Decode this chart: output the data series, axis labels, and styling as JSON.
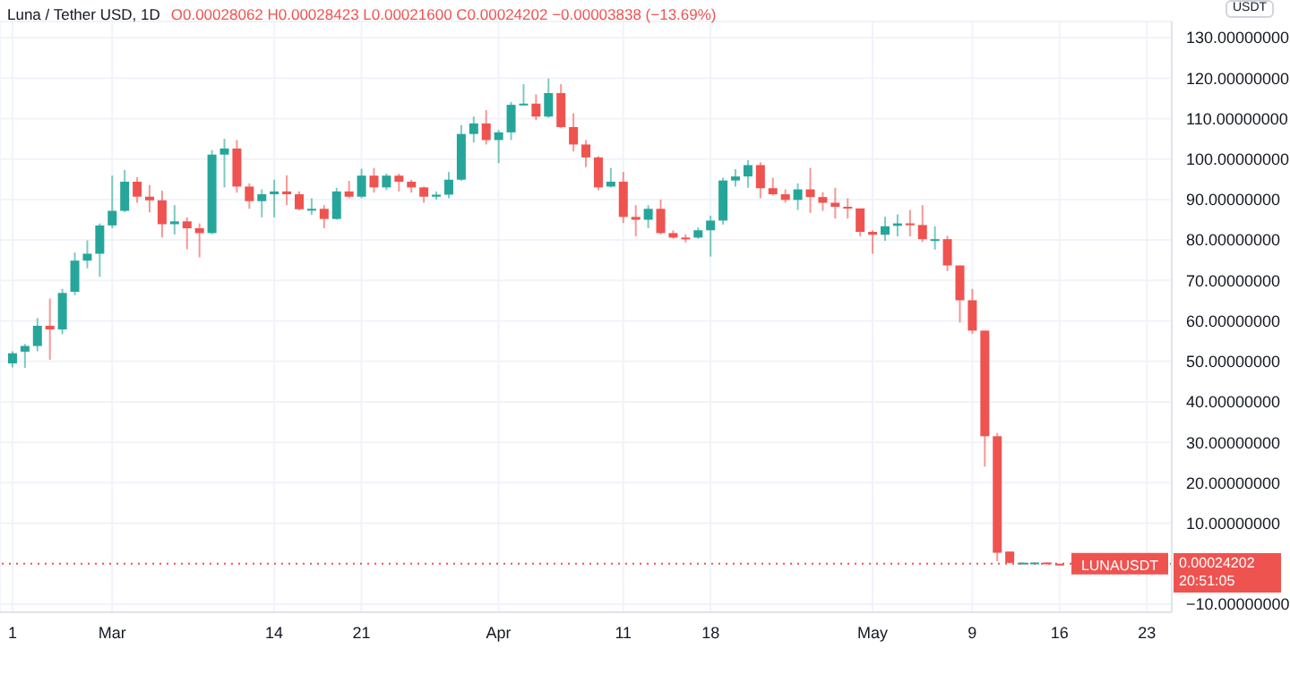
{
  "chart_data": {
    "type": "candlestick",
    "title": "Luna / Tether USD, 1D",
    "subtitle": "O0.00028062 H0.00028423 L0.00021600 C0.00024202 −0.00003838 (−13.69%)",
    "ylabel": "USDT",
    "x": [
      "--02-21",
      "--02-22",
      "--02-23",
      "--02-24",
      "--02-25",
      "--02-26",
      "--02-27",
      "--02-28",
      "--03-01",
      "--03-02",
      "--03-03",
      "--03-04",
      "--03-05",
      "--03-06",
      "--03-07",
      "--03-08",
      "--03-09",
      "--03-10",
      "--03-11",
      "--03-12",
      "--03-13",
      "--03-14",
      "--03-15",
      "--03-16",
      "--03-17",
      "--03-18",
      "--03-19",
      "--03-20",
      "--03-21",
      "--03-22",
      "--03-23",
      "--03-24",
      "--03-25",
      "--03-26",
      "--03-27",
      "--03-28",
      "--03-29",
      "--03-30",
      "--03-31",
      "--04-01",
      "--04-02",
      "--04-03",
      "--04-04",
      "--04-05",
      "--04-06",
      "--04-07",
      "--04-08",
      "--04-09",
      "--04-10",
      "--04-11",
      "--04-12",
      "--04-13",
      "--04-14",
      "--04-15",
      "--04-16",
      "--04-17",
      "--04-18",
      "--04-19",
      "--04-20",
      "--04-21",
      "--04-22",
      "--04-23",
      "--04-24",
      "--04-25",
      "--04-26",
      "--04-27",
      "--04-28",
      "--04-29",
      "--04-30",
      "--05-01",
      "--05-02",
      "--05-03",
      "--05-04",
      "--05-05",
      "--05-06",
      "--05-07",
      "--05-08",
      "--05-09",
      "--05-10",
      "--05-11",
      "--05-12",
      "--05-13",
      "--05-14",
      "--05-15",
      "--05-16"
    ],
    "ohlc": [
      [
        49.5,
        52.5,
        48.5,
        52.0
      ],
      [
        52.4,
        54.3,
        48.4,
        53.8
      ],
      [
        53.8,
        60.7,
        52.5,
        58.8
      ],
      [
        58.8,
        65.5,
        50.4,
        57.9
      ],
      [
        57.9,
        67.9,
        56.7,
        66.9
      ],
      [
        67.2,
        76.9,
        66.4,
        74.9
      ],
      [
        74.9,
        79.9,
        73.0,
        76.6
      ],
      [
        76.6,
        84.1,
        70.9,
        83.6
      ],
      [
        83.6,
        95.9,
        82.9,
        87.2
      ],
      [
        87.2,
        97.3,
        86.9,
        94.4
      ],
      [
        94.4,
        95.5,
        89.2,
        90.7
      ],
      [
        90.7,
        93.6,
        86.8,
        89.8
      ],
      [
        89.8,
        92.2,
        80.6,
        83.9
      ],
      [
        83.9,
        88.6,
        81.4,
        84.6
      ],
      [
        84.6,
        85.6,
        77.7,
        82.9
      ],
      [
        82.9,
        84.1,
        75.7,
        81.7
      ],
      [
        81.7,
        102.2,
        81.4,
        101.1
      ],
      [
        101.1,
        105.0,
        93.0,
        102.6
      ],
      [
        102.6,
        104.7,
        91.7,
        93.2
      ],
      [
        93.2,
        94.0,
        87.7,
        89.6
      ],
      [
        89.6,
        92.5,
        85.6,
        91.3
      ],
      [
        91.3,
        94.9,
        85.6,
        92.0
      ],
      [
        92.0,
        96.0,
        88.6,
        91.3
      ],
      [
        91.3,
        92.0,
        87.4,
        87.6
      ],
      [
        87.4,
        90.3,
        86.2,
        87.7
      ],
      [
        87.7,
        88.6,
        82.9,
        85.2
      ],
      [
        85.2,
        92.9,
        85.0,
        92.0
      ],
      [
        92.0,
        94.6,
        90.3,
        90.7
      ],
      [
        90.7,
        97.6,
        90.3,
        95.9
      ],
      [
        95.9,
        97.8,
        91.7,
        93.0
      ],
      [
        93.0,
        96.4,
        92.3,
        95.9
      ],
      [
        95.9,
        96.4,
        92.0,
        94.4
      ],
      [
        94.4,
        94.9,
        91.7,
        93.0
      ],
      [
        93.0,
        93.2,
        89.2,
        90.7
      ],
      [
        90.7,
        92.0,
        90.0,
        91.2
      ],
      [
        91.2,
        96.8,
        90.3,
        94.9
      ],
      [
        94.9,
        108.4,
        94.6,
        106.2
      ],
      [
        106.2,
        110.5,
        104.1,
        108.8
      ],
      [
        108.8,
        112.1,
        103.6,
        104.7
      ],
      [
        104.7,
        107.2,
        99.0,
        106.6
      ],
      [
        106.6,
        114.1,
        104.7,
        113.4
      ],
      [
        113.4,
        118.5,
        113.3,
        113.7
      ],
      [
        113.7,
        116.0,
        109.6,
        110.5
      ],
      [
        110.5,
        119.9,
        110.2,
        116.3
      ],
      [
        116.3,
        118.5,
        107.6,
        107.9
      ],
      [
        107.9,
        111.3,
        101.9,
        103.6
      ],
      [
        103.6,
        104.7,
        98.0,
        100.4
      ],
      [
        100.4,
        100.7,
        92.3,
        93.0
      ],
      [
        93.2,
        97.8,
        93.0,
        94.4
      ],
      [
        94.4,
        96.8,
        84.2,
        85.7
      ],
      [
        85.7,
        88.6,
        80.9,
        85.0
      ],
      [
        85.0,
        88.6,
        82.9,
        87.7
      ],
      [
        87.7,
        90.0,
        81.4,
        81.7
      ],
      [
        81.7,
        82.4,
        80.3,
        80.6
      ],
      [
        80.6,
        81.4,
        79.4,
        80.3
      ],
      [
        80.6,
        83.1,
        80.3,
        82.4
      ],
      [
        82.4,
        86.0,
        75.9,
        84.8
      ],
      [
        84.8,
        95.4,
        83.8,
        94.7
      ],
      [
        94.7,
        97.5,
        93.2,
        95.7
      ],
      [
        95.7,
        99.7,
        92.9,
        98.5
      ],
      [
        98.5,
        99.2,
        90.3,
        92.8
      ],
      [
        92.8,
        95.4,
        91.0,
        91.3
      ],
      [
        91.3,
        92.5,
        89.2,
        89.9
      ],
      [
        89.9,
        94.0,
        87.4,
        92.5
      ],
      [
        92.5,
        97.8,
        86.7,
        90.6
      ],
      [
        90.6,
        91.8,
        87.2,
        89.2
      ],
      [
        89.2,
        92.9,
        85.3,
        88.2
      ],
      [
        88.2,
        90.3,
        85.3,
        87.8
      ],
      [
        87.8,
        87.8,
        80.9,
        82.0
      ],
      [
        82.0,
        82.4,
        76.6,
        81.3
      ],
      [
        81.3,
        85.7,
        79.8,
        83.4
      ],
      [
        83.5,
        86.3,
        80.9,
        84.1
      ],
      [
        84.1,
        87.4,
        80.9,
        83.7
      ],
      [
        83.7,
        88.6,
        79.5,
        80.2
      ],
      [
        79.9,
        83.4,
        77.6,
        80.2
      ],
      [
        80.2,
        81.0,
        72.3,
        73.7
      ],
      [
        73.7,
        73.7,
        59.6,
        65.1
      ],
      [
        65.1,
        67.9,
        56.8,
        57.6
      ],
      [
        57.6,
        57.6,
        24.0,
        31.5
      ],
      [
        31.5,
        32.3,
        0.6,
        2.7
      ],
      [
        3.0,
        3.0,
        0.1,
        0.2
      ],
      [
        0.2,
        0.3,
        0.1,
        0.25
      ],
      [
        0.25,
        0.3,
        0.2,
        0.28
      ],
      [
        0.28,
        0.3,
        0.1,
        0.2
      ],
      [
        0.00028062,
        0.00028423,
        0.000216,
        0.00024202
      ]
    ],
    "colors": [
      "#26a69a",
      "#26a69a",
      "#26a69a",
      "#ef5350",
      "#26a69a",
      "#26a69a",
      "#26a69a",
      "#26a69a",
      "#26a69a",
      "#26a69a",
      "#ef5350",
      "#ef5350",
      "#ef5350",
      "#26a69a",
      "#ef5350",
      "#ef5350",
      "#26a69a",
      "#26a69a",
      "#ef5350",
      "#ef5350",
      "#26a69a",
      "#26a69a",
      "#ef5350",
      "#ef5350",
      "#26a69a",
      "#ef5350",
      "#26a69a",
      "#ef5350",
      "#26a69a",
      "#ef5350",
      "#26a69a",
      "#ef5350",
      "#ef5350",
      "#ef5350",
      "#26a69a",
      "#26a69a",
      "#26a69a",
      "#26a69a",
      "#ef5350",
      "#26a69a",
      "#26a69a",
      "#26a69a",
      "#ef5350",
      "#26a69a",
      "#ef5350",
      "#ef5350",
      "#ef5350",
      "#ef5350",
      "#26a69a",
      "#ef5350",
      "#ef5350",
      "#26a69a",
      "#ef5350",
      "#ef5350",
      "#ef5350",
      "#26a69a",
      "#26a69a",
      "#26a69a",
      "#26a69a",
      "#26a69a",
      "#ef5350",
      "#ef5350",
      "#ef5350",
      "#26a69a",
      "#ef5350",
      "#ef5350",
      "#ef5350",
      "#ef5350",
      "#ef5350",
      "#ef5350",
      "#26a69a",
      "#26a69a",
      "#ef5350",
      "#ef5350",
      "#26a69a",
      "#ef5350",
      "#ef5350",
      "#ef5350",
      "#ef5350",
      "#ef5350",
      "#ef5350",
      "#26a69a",
      "#26a69a",
      "#ef5350",
      "#ef5350"
    ],
    "xlim": [
      "--02-20",
      "--05-25"
    ],
    "xticks": [
      {
        "value": "--02-21",
        "label": "1"
      },
      {
        "value": "--03-01",
        "label": "Mar"
      },
      {
        "value": "--03-14",
        "label": "14"
      },
      {
        "value": "--03-21",
        "label": "21"
      },
      {
        "value": "--04-01",
        "label": "Apr"
      },
      {
        "value": "--04-11",
        "label": "11"
      },
      {
        "value": "--04-18",
        "label": "18"
      },
      {
        "value": "--05-01",
        "label": "May"
      },
      {
        "value": "--05-09",
        "label": "9"
      },
      {
        "value": "--05-16",
        "label": "16"
      },
      {
        "value": "--05-23",
        "label": "23"
      }
    ],
    "ylim": [
      -12,
      134
    ],
    "yticks": [
      {
        "value": -10,
        "label": "−10.00000000"
      },
      {
        "value": 10,
        "label": "10.00000000"
      },
      {
        "value": 20,
        "label": "20.00000000"
      },
      {
        "value": 30,
        "label": "30.00000000"
      },
      {
        "value": 40,
        "label": "40.00000000"
      },
      {
        "value": 50,
        "label": "50.00000000"
      },
      {
        "value": 60,
        "label": "60.00000000"
      },
      {
        "value": 70,
        "label": "70.00000000"
      },
      {
        "value": 80,
        "label": "80.00000000"
      },
      {
        "value": 90,
        "label": "90.00000000"
      },
      {
        "value": 100,
        "label": "100.00000000"
      },
      {
        "value": 110,
        "label": "110.00000000"
      },
      {
        "value": 120,
        "label": "120.00000000"
      },
      {
        "value": 130,
        "label": "130.00000000"
      }
    ],
    "ref_lines": [
      {
        "axis": "y",
        "value": 0.00024202,
        "label": "LUNAUSDT",
        "color": "#ef5350",
        "line_style": "dotted"
      }
    ],
    "annotations": [
      "0.00024202",
      "20:51:05"
    ],
    "grid": true,
    "legend": false
  }
}
